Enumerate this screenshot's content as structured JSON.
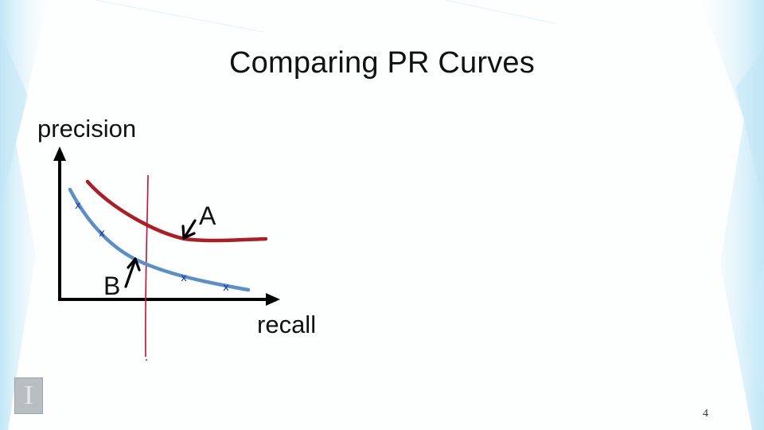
{
  "slide": {
    "title": "Comparing PR Curves",
    "page_number": "4"
  },
  "diagram": {
    "y_axis_label": "precision",
    "x_axis_label": "recall",
    "curve_a_label": "A",
    "curve_b_label": "B",
    "curve_a_color": "#b01c23",
    "curve_b_color": "#5b8fc9",
    "marker_color": "#1a2fb5",
    "divider_color": "#c8102e",
    "axis_color": "#000000",
    "marker_symbol": "x"
  },
  "logo": {
    "letter": "I",
    "background": "#b9bec2"
  }
}
